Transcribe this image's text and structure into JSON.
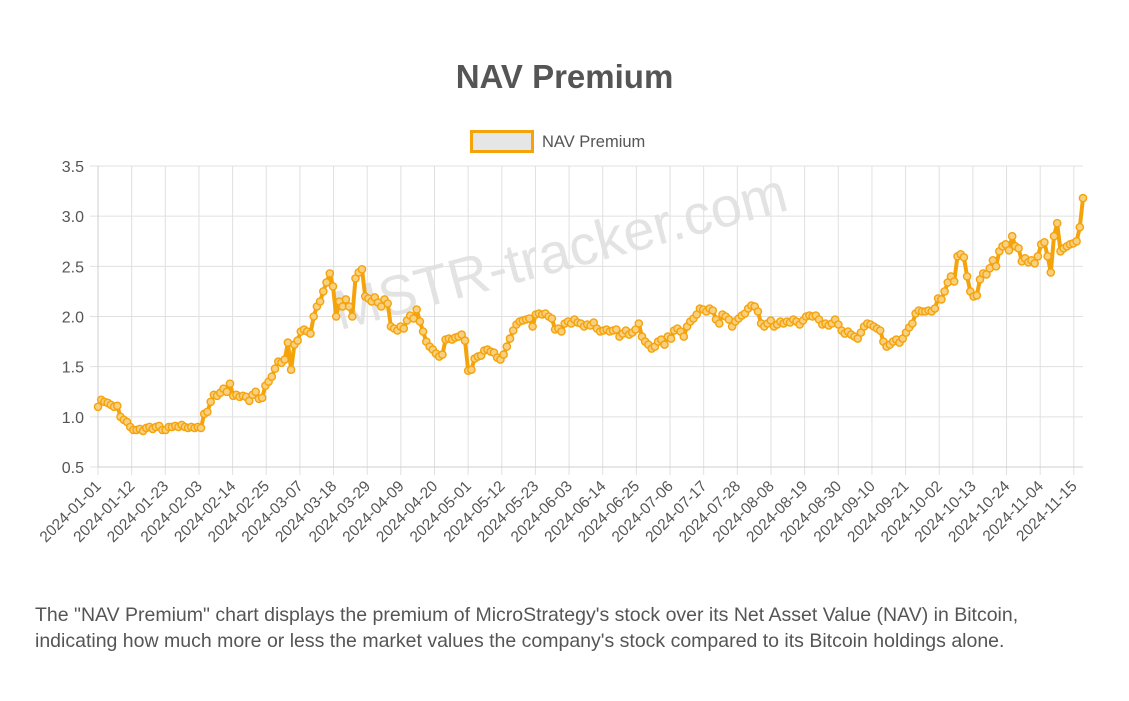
{
  "title": "NAV Premium",
  "description": "The \"NAV Premium\" chart displays the premium of MicroStrategy's stock over its Net Asset Value (NAV) in Bitcoin, indicating how much more or less the market values the company's stock compared to its Bitcoin holdings alone.",
  "watermark": "MSTR-tracker.com",
  "colors": {
    "line": "#f5a30a",
    "legend_fill": "#e6e6e6",
    "grid": "#e0e0e0",
    "text": "#555555",
    "watermark": "#e3e3e3"
  },
  "chart_data": {
    "type": "line",
    "title": "NAV Premium",
    "xlabel": "",
    "ylabel": "",
    "ylim": [
      0.5,
      3.5
    ],
    "yticks": [
      0.5,
      1.0,
      1.5,
      2.0,
      2.5,
      3.0,
      3.5
    ],
    "ytick_labels": [
      "0.5",
      "1.0",
      "1.5",
      "2.0",
      "2.5",
      "3.0",
      "3.5"
    ],
    "x_start": "2024-01-01",
    "x_end": "2024-11-18",
    "xtick_labels": [
      "2024-01-01",
      "2024-01-12",
      "2024-01-23",
      "2024-02-03",
      "2024-02-14",
      "2024-02-25",
      "2024-03-07",
      "2024-03-18",
      "2024-03-29",
      "2024-04-09",
      "2024-04-20",
      "2024-05-01",
      "2024-05-12",
      "2024-05-23",
      "2024-06-03",
      "2024-06-14",
      "2024-06-25",
      "2024-07-06",
      "2024-07-17",
      "2024-07-28",
      "2024-08-08",
      "2024-08-19",
      "2024-08-30",
      "2024-09-10",
      "2024-09-21",
      "2024-10-02",
      "2024-10-13",
      "2024-10-24",
      "2024-11-04",
      "2024-11-15"
    ],
    "legend": "top",
    "grid": true,
    "series": [
      {
        "name": "NAV Premium",
        "values": [
          1.1,
          1.17,
          1.15,
          1.14,
          1.12,
          1.1,
          1.11,
          1.0,
          0.97,
          0.95,
          0.9,
          0.87,
          0.87,
          0.88,
          0.86,
          0.89,
          0.9,
          0.88,
          0.9,
          0.91,
          0.87,
          0.87,
          0.9,
          0.9,
          0.91,
          0.9,
          0.92,
          0.9,
          0.89,
          0.9,
          0.89,
          0.9,
          0.89,
          1.03,
          1.05,
          1.15,
          1.22,
          1.21,
          1.24,
          1.28,
          1.25,
          1.33,
          1.21,
          1.22,
          1.2,
          1.21,
          1.2,
          1.16,
          1.22,
          1.25,
          1.18,
          1.19,
          1.31,
          1.35,
          1.4,
          1.48,
          1.55,
          1.54,
          1.57,
          1.74,
          1.47,
          1.72,
          1.76,
          1.85,
          1.87,
          1.85,
          1.83,
          2.0,
          2.1,
          2.15,
          2.25,
          2.34,
          2.43,
          2.3,
          2.0,
          2.15,
          2.1,
          2.17,
          2.1,
          2.0,
          2.38,
          2.44,
          2.47,
          2.2,
          2.18,
          2.15,
          2.19,
          2.14,
          2.1,
          2.17,
          2.13,
          1.9,
          1.88,
          1.86,
          1.9,
          1.88,
          1.96,
          2.01,
          1.98,
          2.07,
          1.95,
          1.85,
          1.75,
          1.7,
          1.67,
          1.63,
          1.6,
          1.62,
          1.77,
          1.78,
          1.77,
          1.79,
          1.8,
          1.82,
          1.76,
          1.46,
          1.47,
          1.58,
          1.6,
          1.61,
          1.66,
          1.67,
          1.65,
          1.64,
          1.59,
          1.57,
          1.62,
          1.7,
          1.78,
          1.86,
          1.92,
          1.95,
          1.96,
          1.97,
          1.98,
          1.9,
          2.02,
          2.03,
          2.02,
          2.03,
          2.0,
          1.98,
          1.87,
          1.88,
          1.85,
          1.93,
          1.95,
          1.93,
          1.97,
          1.94,
          1.93,
          1.9,
          1.92,
          1.91,
          1.94,
          1.88,
          1.85,
          1.86,
          1.87,
          1.85,
          1.86,
          1.87,
          1.8,
          1.83,
          1.86,
          1.82,
          1.84,
          1.87,
          1.93,
          1.8,
          1.75,
          1.72,
          1.68,
          1.7,
          1.75,
          1.77,
          1.72,
          1.8,
          1.78,
          1.86,
          1.88,
          1.85,
          1.8,
          1.9,
          1.95,
          1.98,
          2.02,
          2.08,
          2.07,
          2.05,
          2.08,
          2.06,
          1.97,
          1.93,
          2.02,
          2.0,
          1.97,
          1.9,
          1.95,
          1.98,
          2.01,
          2.03,
          2.08,
          2.11,
          2.1,
          2.05,
          1.93,
          1.9,
          1.93,
          1.96,
          1.9,
          1.92,
          1.95,
          1.93,
          1.95,
          1.94,
          1.97,
          1.95,
          1.92,
          1.96,
          2.0,
          2.01,
          2.0,
          2.01,
          1.97,
          1.92,
          1.93,
          1.91,
          1.93,
          1.97,
          1.92,
          1.86,
          1.83,
          1.85,
          1.82,
          1.8,
          1.78,
          1.84,
          1.9,
          1.93,
          1.92,
          1.9,
          1.88,
          1.86,
          1.75,
          1.7,
          1.72,
          1.75,
          1.77,
          1.74,
          1.78,
          1.84,
          1.89,
          1.93,
          2.03,
          2.06,
          2.05,
          2.05,
          2.06,
          2.05,
          2.08,
          2.18,
          2.17,
          2.25,
          2.34,
          2.4,
          2.35,
          2.6,
          2.62,
          2.59,
          2.4,
          2.25,
          2.2,
          2.21,
          2.37,
          2.43,
          2.42,
          2.48,
          2.56,
          2.5,
          2.65,
          2.7,
          2.72,
          2.66,
          2.8,
          2.7,
          2.68,
          2.55,
          2.58,
          2.54,
          2.56,
          2.53,
          2.6,
          2.72,
          2.74,
          2.6,
          2.44,
          2.8,
          2.93,
          2.65,
          2.68,
          2.7,
          2.72,
          2.73,
          2.75,
          2.89,
          3.18
        ]
      }
    ]
  }
}
